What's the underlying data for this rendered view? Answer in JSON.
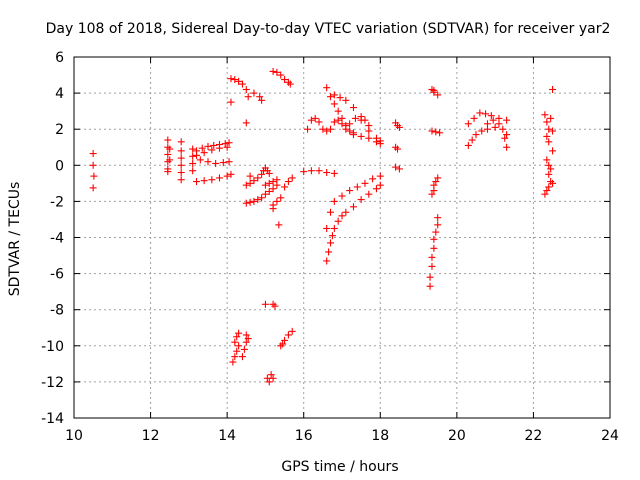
{
  "chart_data": {
    "type": "scatter",
    "title": "Day 108 of 2018, Sidereal Day-to-day VTEC variation (SDTVAR) for receiver yar2",
    "xlabel": "GPS time / hours",
    "ylabel": "SDTVAR / TECUs",
    "xlim": [
      10,
      24
    ],
    "ylim": [
      -14,
      6
    ],
    "xticks": [
      10,
      12,
      14,
      16,
      18,
      20,
      22,
      24
    ],
    "yticks": [
      -14,
      -12,
      -10,
      -8,
      -6,
      -4,
      -2,
      0,
      2,
      4,
      6
    ],
    "grid": true,
    "marker": "+",
    "color": "#ff0000",
    "series": [
      {
        "name": "SDTVAR",
        "points": [
          [
            10.5,
            0.65
          ],
          [
            10.5,
            0.0
          ],
          [
            10.52,
            -0.6
          ],
          [
            10.5,
            -1.25
          ],
          [
            12.45,
            1.4
          ],
          [
            12.45,
            1.0
          ],
          [
            12.45,
            0.6
          ],
          [
            12.45,
            0.2
          ],
          [
            12.45,
            -0.2
          ],
          [
            12.45,
            -0.35
          ],
          [
            12.5,
            0.9
          ],
          [
            12.5,
            0.3
          ],
          [
            12.8,
            1.3
          ],
          [
            12.8,
            0.8
          ],
          [
            12.8,
            0.4
          ],
          [
            12.8,
            0.0
          ],
          [
            12.8,
            -0.4
          ],
          [
            12.8,
            -0.8
          ],
          [
            13.1,
            0.9
          ],
          [
            13.1,
            0.5
          ],
          [
            13.1,
            0.1
          ],
          [
            13.1,
            -0.3
          ],
          [
            13.2,
            0.8
          ],
          [
            13.35,
            0.95
          ],
          [
            13.5,
            1.05
          ],
          [
            13.65,
            1.1
          ],
          [
            13.8,
            1.15
          ],
          [
            13.95,
            1.2
          ],
          [
            14.05,
            1.25
          ],
          [
            13.2,
            0.55
          ],
          [
            13.4,
            0.7
          ],
          [
            13.6,
            0.85
          ],
          [
            13.8,
            0.95
          ],
          [
            14.0,
            1.0
          ],
          [
            13.3,
            0.3
          ],
          [
            13.5,
            0.2
          ],
          [
            13.7,
            0.1
          ],
          [
            13.9,
            0.15
          ],
          [
            14.05,
            0.2
          ],
          [
            13.2,
            -0.9
          ],
          [
            13.4,
            -0.85
          ],
          [
            13.6,
            -0.8
          ],
          [
            13.8,
            -0.7
          ],
          [
            14.0,
            -0.6
          ],
          [
            14.1,
            -0.5
          ],
          [
            14.1,
            3.5
          ],
          [
            14.1,
            4.8
          ],
          [
            14.2,
            4.75
          ],
          [
            14.3,
            4.65
          ],
          [
            14.4,
            4.5
          ],
          [
            14.5,
            4.2
          ],
          [
            14.55,
            3.8
          ],
          [
            14.7,
            4.0
          ],
          [
            14.85,
            3.8
          ],
          [
            14.9,
            3.6
          ],
          [
            14.5,
            2.35
          ],
          [
            14.6,
            -0.6
          ],
          [
            14.5,
            -1.1
          ],
          [
            14.6,
            -1.0
          ],
          [
            14.7,
            -0.85
          ],
          [
            14.8,
            -0.7
          ],
          [
            14.9,
            -0.5
          ],
          [
            14.95,
            -0.3
          ],
          [
            15.0,
            -0.15
          ],
          [
            15.05,
            -0.3
          ],
          [
            15.1,
            -0.45
          ],
          [
            14.5,
            -2.1
          ],
          [
            14.6,
            -2.05
          ],
          [
            14.7,
            -2.0
          ],
          [
            14.8,
            -1.9
          ],
          [
            14.9,
            -1.8
          ],
          [
            15.0,
            -1.6
          ],
          [
            15.1,
            -1.45
          ],
          [
            15.2,
            -1.3
          ],
          [
            15.3,
            -1.1
          ],
          [
            15.0,
            -1.1
          ],
          [
            15.1,
            -1.0
          ],
          [
            15.2,
            -0.9
          ],
          [
            15.3,
            -0.8
          ],
          [
            15.2,
            -2.4
          ],
          [
            15.2,
            -2.2
          ],
          [
            15.3,
            -2.0
          ],
          [
            15.4,
            -1.8
          ],
          [
            15.5,
            -1.2
          ],
          [
            15.6,
            -0.9
          ],
          [
            15.7,
            -0.7
          ],
          [
            15.35,
            -3.3
          ],
          [
            15.2,
            5.2
          ],
          [
            15.3,
            5.15
          ],
          [
            15.4,
            5.0
          ],
          [
            15.5,
            4.75
          ],
          [
            15.6,
            4.6
          ],
          [
            15.65,
            4.5
          ],
          [
            14.15,
            -10.9
          ],
          [
            14.2,
            -10.6
          ],
          [
            14.25,
            -10.3
          ],
          [
            14.3,
            -10.0
          ],
          [
            14.2,
            -9.8
          ],
          [
            14.25,
            -9.5
          ],
          [
            14.3,
            -9.3
          ],
          [
            14.4,
            -10.6
          ],
          [
            14.45,
            -10.2
          ],
          [
            14.5,
            -9.8
          ],
          [
            14.5,
            -9.4
          ],
          [
            14.55,
            -9.6
          ],
          [
            15.0,
            -7.7
          ],
          [
            15.2,
            -7.7
          ],
          [
            15.25,
            -7.8
          ],
          [
            15.05,
            -11.8
          ],
          [
            15.1,
            -12.0
          ],
          [
            15.15,
            -11.6
          ],
          [
            15.2,
            -11.8
          ],
          [
            15.4,
            -10.0
          ],
          [
            15.5,
            -9.7
          ],
          [
            15.6,
            -9.4
          ],
          [
            15.7,
            -9.2
          ],
          [
            15.45,
            -9.9
          ],
          [
            16.0,
            -0.35
          ],
          [
            16.2,
            -0.3
          ],
          [
            16.4,
            -0.3
          ],
          [
            16.6,
            -0.4
          ],
          [
            16.8,
            -0.45
          ],
          [
            16.1,
            2.0
          ],
          [
            16.2,
            2.5
          ],
          [
            16.3,
            2.6
          ],
          [
            16.4,
            2.4
          ],
          [
            16.5,
            2.0
          ],
          [
            16.6,
            1.9
          ],
          [
            16.6,
            4.3
          ],
          [
            16.7,
            3.8
          ],
          [
            16.8,
            3.4
          ],
          [
            16.9,
            3.0
          ],
          [
            17.0,
            2.6
          ],
          [
            17.1,
            2.2
          ],
          [
            17.2,
            1.9
          ],
          [
            17.3,
            1.8
          ],
          [
            16.7,
            2.0
          ],
          [
            16.8,
            2.4
          ],
          [
            16.9,
            2.5
          ],
          [
            17.0,
            2.3
          ],
          [
            17.1,
            2.0
          ],
          [
            17.3,
            1.7
          ],
          [
            17.5,
            1.6
          ],
          [
            17.7,
            1.5
          ],
          [
            17.9,
            1.3
          ],
          [
            18.0,
            1.2
          ],
          [
            16.8,
            3.9
          ],
          [
            16.95,
            3.75
          ],
          [
            17.1,
            3.6
          ],
          [
            17.3,
            3.2
          ],
          [
            17.5,
            2.5
          ],
          [
            17.7,
            1.9
          ],
          [
            17.9,
            1.5
          ],
          [
            18.0,
            1.35
          ],
          [
            17.2,
            2.3
          ],
          [
            17.35,
            2.6
          ],
          [
            17.5,
            2.7
          ],
          [
            17.6,
            2.5
          ],
          [
            17.7,
            2.2
          ],
          [
            16.6,
            -5.3
          ],
          [
            16.65,
            -4.8
          ],
          [
            16.7,
            -4.3
          ],
          [
            16.75,
            -3.9
          ],
          [
            16.8,
            -3.5
          ],
          [
            16.9,
            -3.1
          ],
          [
            17.0,
            -2.8
          ],
          [
            17.1,
            -2.6
          ],
          [
            17.3,
            -2.3
          ],
          [
            17.5,
            -1.9
          ],
          [
            17.7,
            -1.6
          ],
          [
            17.9,
            -1.3
          ],
          [
            18.0,
            -1.1
          ],
          [
            16.6,
            -3.5
          ],
          [
            16.7,
            -2.6
          ],
          [
            16.8,
            -2.0
          ],
          [
            17.0,
            -1.7
          ],
          [
            17.2,
            -1.4
          ],
          [
            17.4,
            -1.2
          ],
          [
            17.6,
            -1.0
          ],
          [
            17.8,
            -0.75
          ],
          [
            18.0,
            -0.6
          ],
          [
            18.4,
            2.35
          ],
          [
            18.45,
            2.2
          ],
          [
            18.5,
            2.1
          ],
          [
            18.4,
            1.0
          ],
          [
            18.45,
            0.9
          ],
          [
            18.4,
            -0.1
          ],
          [
            18.5,
            -0.2
          ],
          [
            19.35,
            4.2
          ],
          [
            19.4,
            4.05
          ],
          [
            19.5,
            3.9
          ],
          [
            19.4,
            4.15
          ],
          [
            19.35,
            1.9
          ],
          [
            19.45,
            1.85
          ],
          [
            19.55,
            1.8
          ],
          [
            19.4,
            -1.1
          ],
          [
            19.45,
            -0.9
          ],
          [
            19.5,
            -0.7
          ],
          [
            19.35,
            -1.6
          ],
          [
            19.4,
            -1.4
          ],
          [
            19.3,
            -6.7
          ],
          [
            19.3,
            -6.2
          ],
          [
            19.35,
            -5.6
          ],
          [
            19.35,
            -5.1
          ],
          [
            19.4,
            -4.6
          ],
          [
            19.4,
            -4.1
          ],
          [
            19.45,
            -3.7
          ],
          [
            19.5,
            -3.3
          ],
          [
            19.5,
            -2.9
          ],
          [
            20.3,
            1.1
          ],
          [
            20.4,
            1.4
          ],
          [
            20.5,
            1.7
          ],
          [
            20.65,
            1.9
          ],
          [
            20.8,
            2.0
          ],
          [
            21.0,
            2.1
          ],
          [
            21.2,
            2.0
          ],
          [
            21.3,
            1.7
          ],
          [
            20.3,
            2.3
          ],
          [
            20.45,
            2.6
          ],
          [
            20.6,
            2.9
          ],
          [
            20.75,
            2.85
          ],
          [
            20.9,
            2.75
          ],
          [
            21.1,
            2.6
          ],
          [
            21.3,
            2.5
          ],
          [
            20.8,
            2.3
          ],
          [
            20.95,
            2.5
          ],
          [
            21.1,
            2.3
          ],
          [
            21.25,
            1.5
          ],
          [
            21.3,
            1.0
          ],
          [
            22.3,
            2.8
          ],
          [
            22.35,
            2.4
          ],
          [
            22.4,
            2.0
          ],
          [
            22.35,
            1.6
          ],
          [
            22.4,
            1.3
          ],
          [
            22.35,
            0.3
          ],
          [
            22.4,
            0.0
          ],
          [
            22.45,
            -0.2
          ],
          [
            22.4,
            -0.5
          ],
          [
            22.3,
            -1.6
          ],
          [
            22.35,
            -1.4
          ],
          [
            22.4,
            -1.2
          ],
          [
            22.45,
            -0.9
          ],
          [
            22.5,
            4.2
          ],
          [
            22.45,
            2.6
          ],
          [
            22.5,
            1.9
          ],
          [
            22.5,
            0.8
          ],
          [
            22.5,
            -1.0
          ]
        ]
      }
    ]
  }
}
